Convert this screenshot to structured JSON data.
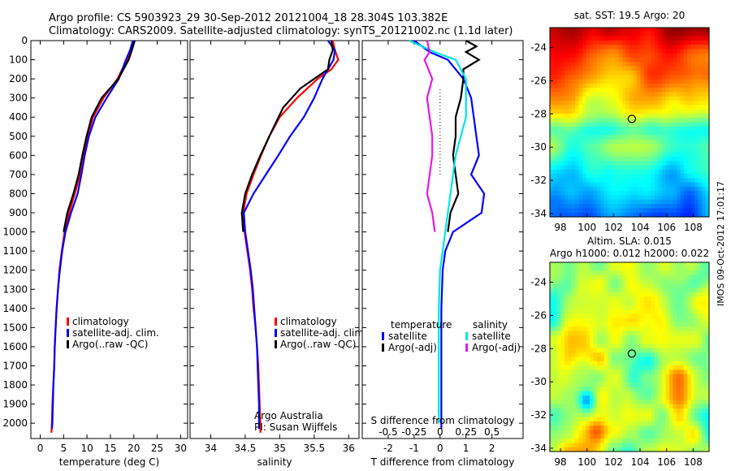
{
  "header": {
    "line1": "Argo profile: CS 5903923_29 30-Sep-2012 20121004_18 28.304S 103.382E",
    "line2": "Climatology: CARS2009. Satellite-adjusted climatology: synTS_20121002.nc (1.1d later)"
  },
  "colors": {
    "climatology": "#ff0000",
    "satellite": "#0000ff",
    "argo": "#000000",
    "salinity_satellite": "#00e5e5",
    "salinity_argo": "#e619e6"
  },
  "chart_data": [
    {
      "type": "line",
      "panel": "temperature",
      "xlabel": "temperature (deg C)",
      "ylabel": "",
      "xlim": [
        -2,
        31.5
      ],
      "ylim": [
        2080,
        0
      ],
      "xticks": [
        0,
        5,
        10,
        15,
        20,
        25,
        30
      ],
      "yticks": [
        0,
        100,
        200,
        300,
        400,
        500,
        600,
        700,
        800,
        900,
        1000,
        1100,
        1200,
        1300,
        1400,
        1500,
        1600,
        1700,
        1800,
        1900,
        2000
      ],
      "legend": {
        "placement": "lower-center",
        "entries": [
          "climatology",
          "satellite-adj. clim.",
          "Argo(..raw -QC)"
        ]
      },
      "series": [
        {
          "name": "climatology",
          "color": "#ff0000",
          "points": [
            [
              20,
              0
            ],
            [
              19.5,
              50
            ],
            [
              18.5,
              100
            ],
            [
              16.5,
              200
            ],
            [
              13.5,
              300
            ],
            [
              11.3,
              400
            ],
            [
              10.1,
              500
            ],
            [
              9.2,
              600
            ],
            [
              8.5,
              700
            ],
            [
              7.4,
              800
            ],
            [
              6.2,
              900
            ],
            [
              5.2,
              1000
            ],
            [
              4.6,
              1100
            ],
            [
              4.1,
              1200
            ],
            [
              3.8,
              1300
            ],
            [
              3.5,
              1400
            ],
            [
              3.3,
              1500
            ],
            [
              3.1,
              1600
            ],
            [
              3.0,
              1700
            ],
            [
              2.8,
              1800
            ],
            [
              2.6,
              1900
            ],
            [
              2.5,
              2000
            ],
            [
              2.4,
              2050
            ]
          ]
        },
        {
          "name": "satellite-adj. clim.",
          "color": "#0000ff",
          "points": [
            [
              19.8,
              0
            ],
            [
              19.2,
              50
            ],
            [
              18.3,
              100
            ],
            [
              16.8,
              200
            ],
            [
              14.2,
              300
            ],
            [
              11.8,
              400
            ],
            [
              10.4,
              500
            ],
            [
              9.5,
              600
            ],
            [
              8.8,
              700
            ],
            [
              8.0,
              800
            ],
            [
              6.6,
              900
            ],
            [
              5.4,
              1000
            ],
            [
              4.7,
              1100
            ],
            [
              4.2,
              1200
            ],
            [
              3.8,
              1300
            ],
            [
              3.5,
              1400
            ],
            [
              3.3,
              1500
            ],
            [
              3.1,
              1600
            ],
            [
              3.0,
              1700
            ],
            [
              2.8,
              1800
            ],
            [
              2.7,
              1900
            ],
            [
              2.6,
              2000
            ],
            [
              2.5,
              2030
            ]
          ]
        },
        {
          "name": "Argo(..raw -QC)",
          "color": "#000000",
          "points": [
            [
              20.2,
              0
            ],
            [
              19.6,
              50
            ],
            [
              18.9,
              100
            ],
            [
              16.7,
              200
            ],
            [
              13.1,
              300
            ],
            [
              11.0,
              400
            ],
            [
              9.9,
              500
            ],
            [
              9.0,
              600
            ],
            [
              8.2,
              700
            ],
            [
              7.1,
              800
            ],
            [
              5.8,
              900
            ],
            [
              5.0,
              1000
            ]
          ]
        }
      ]
    },
    {
      "type": "line",
      "panel": "salinity",
      "xlabel": "salinity",
      "ylabel": "",
      "xlim": [
        33.7,
        36.15
      ],
      "ylim": [
        2080,
        0
      ],
      "xticks": [
        34,
        34.5,
        35,
        35.5,
        36
      ],
      "xticklabels": [
        "34",
        "34.5",
        "35",
        "35.5",
        "36"
      ],
      "legend": {
        "placement": "lower-center",
        "entries": [
          "climatology",
          "satellite-adj. clim.",
          "Argo(..raw -QC)"
        ]
      },
      "annotations": [
        "Argo Australia",
        "PI: Susan Wijffels"
      ],
      "series": [
        {
          "name": "climatology",
          "color": "#ff0000",
          "points": [
            [
              35.77,
              0
            ],
            [
              35.8,
              50
            ],
            [
              35.85,
              100
            ],
            [
              35.75,
              150
            ],
            [
              35.55,
              200
            ],
            [
              35.25,
              300
            ],
            [
              35.0,
              400
            ],
            [
              34.85,
              500
            ],
            [
              34.73,
              600
            ],
            [
              34.62,
              700
            ],
            [
              34.52,
              800
            ],
            [
              34.47,
              900
            ],
            [
              34.49,
              1000
            ],
            [
              34.53,
              1100
            ],
            [
              34.57,
              1200
            ],
            [
              34.6,
              1300
            ],
            [
              34.62,
              1400
            ],
            [
              34.65,
              1500
            ],
            [
              34.67,
              1600
            ],
            [
              34.69,
              1700
            ],
            [
              34.7,
              1800
            ],
            [
              34.71,
              1900
            ],
            [
              34.72,
              2000
            ],
            [
              34.72,
              2050
            ]
          ]
        },
        {
          "name": "satellite-adj. clim.",
          "color": "#0000ff",
          "points": [
            [
              35.7,
              0
            ],
            [
              35.8,
              50
            ],
            [
              35.78,
              100
            ],
            [
              35.7,
              150
            ],
            [
              35.62,
              200
            ],
            [
              35.5,
              300
            ],
            [
              35.35,
              400
            ],
            [
              35.15,
              500
            ],
            [
              34.98,
              600
            ],
            [
              34.8,
              700
            ],
            [
              34.62,
              800
            ],
            [
              34.48,
              900
            ],
            [
              34.5,
              1000
            ],
            [
              34.54,
              1100
            ],
            [
              34.58,
              1200
            ],
            [
              34.61,
              1300
            ],
            [
              34.63,
              1400
            ],
            [
              34.65,
              1500
            ],
            [
              34.67,
              1600
            ],
            [
              34.68,
              1700
            ],
            [
              34.69,
              1800
            ],
            [
              34.7,
              1900
            ],
            [
              34.7,
              2000
            ],
            [
              34.7,
              2030
            ]
          ]
        },
        {
          "name": "Argo(..raw -QC)",
          "color": "#000000",
          "points": [
            [
              35.75,
              0
            ],
            [
              35.77,
              50
            ],
            [
              35.72,
              100
            ],
            [
              35.7,
              150
            ],
            [
              35.58,
              180
            ],
            [
              35.3,
              250
            ],
            [
              35.05,
              350
            ],
            [
              34.85,
              500
            ],
            [
              34.72,
              600
            ],
            [
              34.6,
              700
            ],
            [
              34.5,
              800
            ],
            [
              34.45,
              900
            ],
            [
              34.47,
              1000
            ]
          ]
        }
      ]
    },
    {
      "type": "line",
      "panel": "difference",
      "xlabel": "T difference from climatology",
      "ylabel": "",
      "xlim": [
        -3,
        3.2
      ],
      "ylim": [
        2080,
        0
      ],
      "xticks": [
        -2,
        -1,
        0,
        1,
        2
      ],
      "secondary_axis": {
        "title": "S difference from climatology",
        "ticks": [
          "-0.5",
          "-0.25",
          "0",
          "0.25",
          "0.5"
        ]
      },
      "legend": {
        "placement": "lower-center",
        "headers": [
          "temperature",
          "salinity"
        ],
        "entries": [
          "satellite",
          "Argo(-adj)",
          "satellite",
          "Argo(-adj)"
        ]
      },
      "series": [
        {
          "name": "satellite",
          "group": "temperature",
          "color": "#0000ff",
          "points": [
            [
              -1.0,
              0
            ],
            [
              -0.4,
              60
            ],
            [
              0.3,
              100
            ],
            [
              0.9,
              200
            ],
            [
              1.2,
              300
            ],
            [
              1.3,
              400
            ],
            [
              1.4,
              500
            ],
            [
              1.5,
              600
            ],
            [
              1.2,
              700
            ],
            [
              1.7,
              800
            ],
            [
              1.6,
              900
            ],
            [
              0.5,
              1000
            ],
            [
              0.2,
              1100
            ],
            [
              0.1,
              1200
            ],
            [
              0.05,
              1400
            ],
            [
              0.05,
              1600
            ],
            [
              0.05,
              1800
            ],
            [
              0.05,
              2000
            ],
            [
              0.05,
              2030
            ]
          ]
        },
        {
          "name": "Argo(-adj)",
          "group": "temperature",
          "color": "#000000",
          "points": [
            [
              1.0,
              0
            ],
            [
              1.4,
              30
            ],
            [
              1.0,
              60
            ],
            [
              1.5,
              100
            ],
            [
              0.9,
              150
            ],
            [
              0.9,
              200
            ],
            [
              0.8,
              300
            ],
            [
              0.6,
              400
            ],
            [
              0.6,
              500
            ],
            [
              0.5,
              600
            ],
            [
              0.6,
              700
            ],
            [
              0.7,
              800
            ],
            [
              0.4,
              900
            ],
            [
              0.3,
              1000
            ]
          ]
        },
        {
          "name": "satellite",
          "group": "salinity",
          "color": "#00e5e5",
          "points": [
            [
              -1.2,
              0
            ],
            [
              -0.2,
              60
            ],
            [
              0.6,
              100
            ],
            [
              1.0,
              200
            ],
            [
              1.0,
              300
            ],
            [
              1.0,
              400
            ],
            [
              0.8,
              500
            ],
            [
              0.6,
              600
            ],
            [
              0.5,
              700
            ],
            [
              0.4,
              800
            ],
            [
              0.3,
              900
            ],
            [
              0.2,
              1000
            ],
            [
              0.1,
              1100
            ],
            [
              0.0,
              1200
            ],
            [
              -0.05,
              1400
            ],
            [
              -0.05,
              1600
            ],
            [
              -0.05,
              1800
            ],
            [
              -0.05,
              2000
            ]
          ]
        },
        {
          "name": "Argo(-adj)",
          "group": "salinity",
          "color": "#e619e6",
          "points": [
            [
              -0.5,
              0
            ],
            [
              -0.4,
              60
            ],
            [
              -0.6,
              100
            ],
            [
              -0.3,
              200
            ],
            [
              -0.5,
              300
            ],
            [
              -0.4,
              400
            ],
            [
              -0.3,
              500
            ],
            [
              -0.3,
              600
            ],
            [
              -0.4,
              700
            ],
            [
              -0.5,
              800
            ],
            [
              -0.3,
              900
            ],
            [
              -0.2,
              1000
            ]
          ]
        }
      ]
    },
    {
      "type": "heatmap",
      "panel": "sst-map",
      "title": "sat. SST: 19.5 Argo: 20",
      "xlim": [
        97.2,
        109.2
      ],
      "ylim": [
        -34.2,
        -22.8
      ],
      "xticks": [
        98,
        100,
        102,
        104,
        106,
        108
      ],
      "yticks": [
        -24,
        -26,
        -28,
        -30,
        -32,
        -34
      ],
      "marker": {
        "lon": 103.38,
        "lat": -28.3
      }
    },
    {
      "type": "heatmap",
      "panel": "sla-map",
      "title": "Altim. SLA: 0.015",
      "subtitle": "Argo h1000: 0.012 h2000: 0.022",
      "xlim": [
        97.2,
        109.2
      ],
      "ylim": [
        -34.2,
        -22.8
      ],
      "xticks": [
        98,
        100,
        102,
        104,
        106,
        108
      ],
      "yticks": [
        -24,
        -26,
        -28,
        -30,
        -32,
        -34
      ],
      "marker": {
        "lon": 103.38,
        "lat": -28.3
      }
    }
  ],
  "side_label": "IMOS 09-Oct-2012 17:01:17"
}
